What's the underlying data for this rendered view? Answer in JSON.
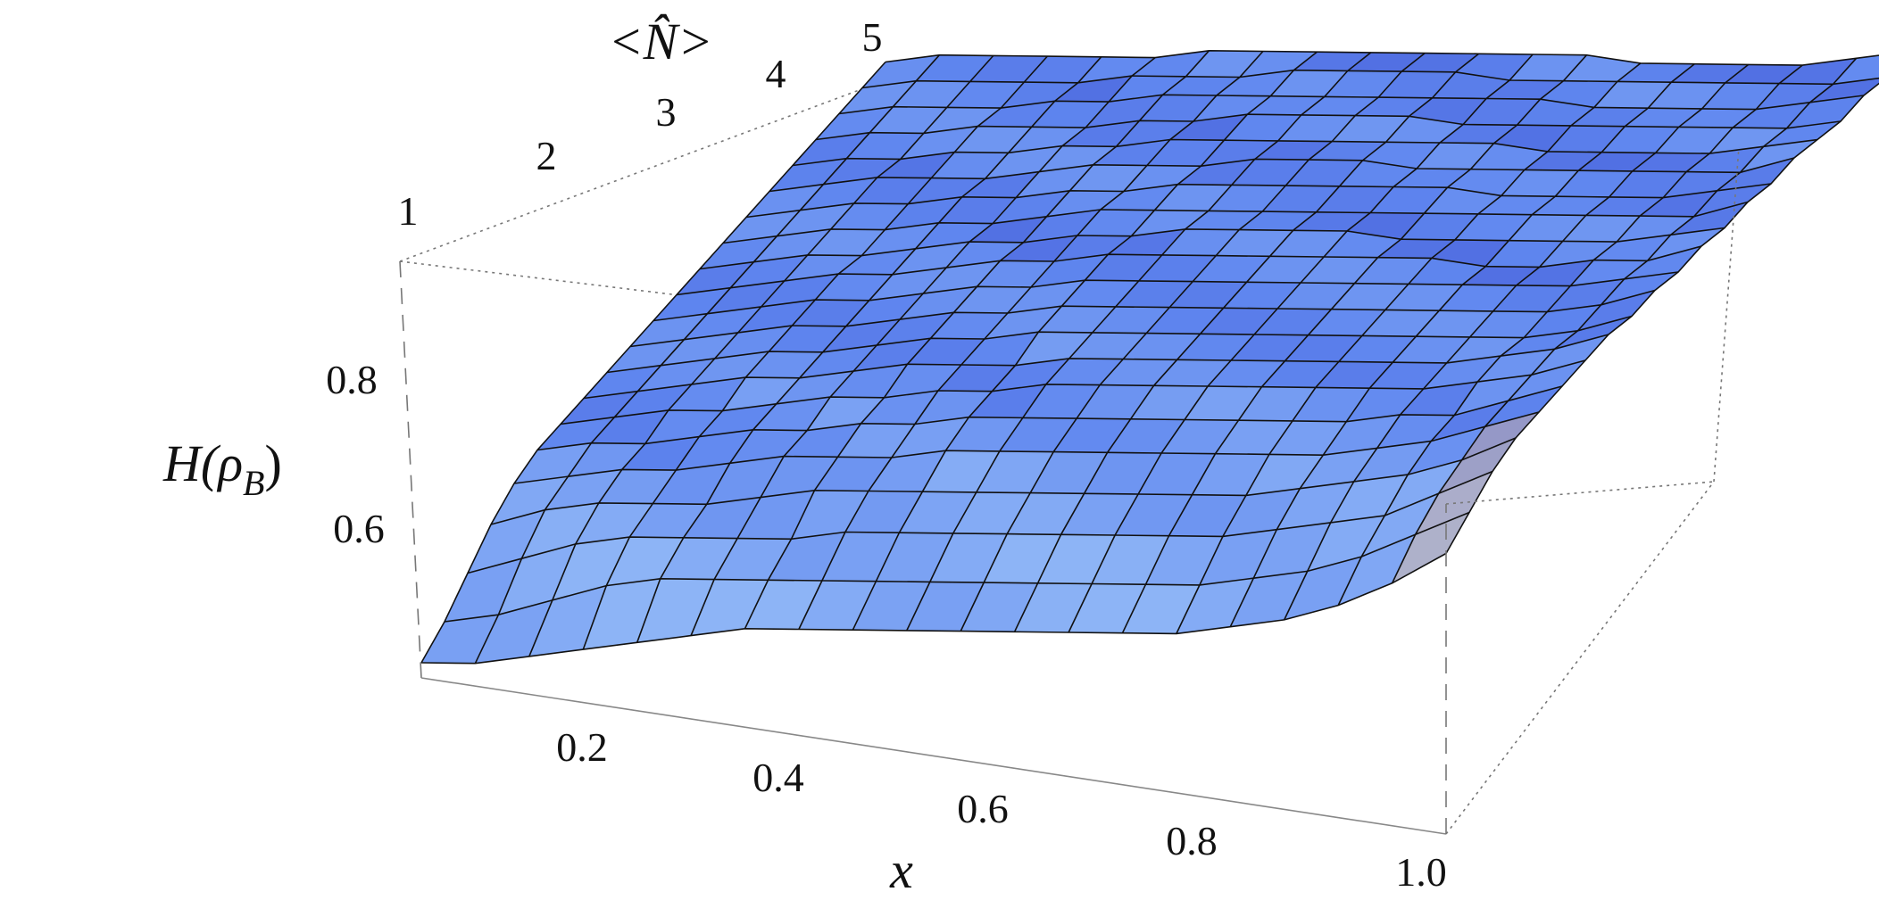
{
  "chart_data": {
    "type": "surface3d",
    "x_axis": {
      "label": "x",
      "ticks": [
        "0.2",
        "0.4",
        "0.6",
        "0.8",
        "1.0"
      ],
      "range": [
        0.05,
        1.0
      ]
    },
    "n_axis": {
      "label": "<N̂>",
      "ticks": [
        "1",
        "2",
        "3",
        "4",
        "5"
      ],
      "range": [
        1,
        5
      ]
    },
    "z_axis": {
      "label_main": "H(ρ",
      "label_sub": "B",
      "label_close": ")",
      "ticks": [
        "0.6",
        "0.8"
      ],
      "range": [
        0.45,
        1.0
      ]
    },
    "x_values": [
      0.05,
      0.1,
      0.15,
      0.2,
      0.25,
      0.3,
      0.35,
      0.4,
      0.45,
      0.5,
      0.55,
      0.6,
      0.65,
      0.7,
      0.75,
      0.8,
      0.85,
      0.9,
      0.95,
      1.0
    ],
    "n_values": [
      1,
      1.2,
      1.4,
      1.6,
      1.8,
      2,
      2.2,
      2.4,
      2.6,
      2.8,
      3,
      3.2,
      3.4,
      3.6,
      3.8,
      4,
      4.2,
      4.4,
      4.6,
      4.8,
      5
    ],
    "h_values": [
      [
        0.47,
        0.5,
        0.54,
        0.58,
        0.61,
        0.63,
        0.64,
        0.65,
        0.66,
        0.67,
        0.68,
        0.69,
        0.7,
        0.71,
        0.72,
        0.73,
        0.74,
        0.75,
        0.76,
        0.77,
        0.78
      ],
      [
        0.48,
        0.52,
        0.57,
        0.61,
        0.63,
        0.65,
        0.66,
        0.67,
        0.68,
        0.69,
        0.7,
        0.71,
        0.72,
        0.73,
        0.74,
        0.75,
        0.76,
        0.77,
        0.78,
        0.79,
        0.8
      ],
      [
        0.5,
        0.55,
        0.6,
        0.63,
        0.65,
        0.66,
        0.68,
        0.69,
        0.7,
        0.71,
        0.72,
        0.73,
        0.74,
        0.75,
        0.76,
        0.77,
        0.77,
        0.78,
        0.79,
        0.8,
        0.81
      ],
      [
        0.52,
        0.58,
        0.62,
        0.64,
        0.66,
        0.68,
        0.69,
        0.71,
        0.72,
        0.73,
        0.74,
        0.75,
        0.75,
        0.76,
        0.77,
        0.78,
        0.79,
        0.8,
        0.8,
        0.81,
        0.82
      ],
      [
        0.54,
        0.6,
        0.63,
        0.65,
        0.68,
        0.7,
        0.71,
        0.72,
        0.73,
        0.74,
        0.75,
        0.76,
        0.77,
        0.78,
        0.79,
        0.79,
        0.8,
        0.81,
        0.82,
        0.82,
        0.83
      ],
      [
        0.56,
        0.61,
        0.64,
        0.67,
        0.7,
        0.71,
        0.73,
        0.74,
        0.75,
        0.76,
        0.77,
        0.78,
        0.79,
        0.79,
        0.8,
        0.81,
        0.82,
        0.82,
        0.83,
        0.84,
        0.84
      ],
      [
        0.58,
        0.62,
        0.65,
        0.69,
        0.71,
        0.73,
        0.74,
        0.76,
        0.77,
        0.78,
        0.79,
        0.8,
        0.8,
        0.81,
        0.82,
        0.83,
        0.83,
        0.84,
        0.85,
        0.85,
        0.86
      ],
      [
        0.59,
        0.63,
        0.67,
        0.7,
        0.72,
        0.74,
        0.76,
        0.77,
        0.78,
        0.79,
        0.8,
        0.81,
        0.82,
        0.83,
        0.83,
        0.84,
        0.85,
        0.85,
        0.86,
        0.86,
        0.87
      ],
      [
        0.6,
        0.64,
        0.68,
        0.71,
        0.74,
        0.76,
        0.77,
        0.78,
        0.8,
        0.81,
        0.82,
        0.83,
        0.83,
        0.84,
        0.85,
        0.85,
        0.86,
        0.87,
        0.87,
        0.88,
        0.88
      ],
      [
        0.61,
        0.65,
        0.69,
        0.72,
        0.75,
        0.77,
        0.79,
        0.8,
        0.81,
        0.82,
        0.83,
        0.84,
        0.85,
        0.85,
        0.86,
        0.87,
        0.87,
        0.88,
        0.88,
        0.89,
        0.89
      ],
      [
        0.62,
        0.66,
        0.7,
        0.73,
        0.76,
        0.78,
        0.8,
        0.81,
        0.82,
        0.83,
        0.84,
        0.85,
        0.86,
        0.86,
        0.87,
        0.88,
        0.88,
        0.89,
        0.89,
        0.9,
        0.9
      ],
      [
        0.63,
        0.67,
        0.71,
        0.74,
        0.77,
        0.79,
        0.81,
        0.82,
        0.83,
        0.84,
        0.85,
        0.86,
        0.87,
        0.87,
        0.88,
        0.89,
        0.89,
        0.9,
        0.9,
        0.91,
        0.91
      ],
      [
        0.64,
        0.68,
        0.72,
        0.75,
        0.78,
        0.8,
        0.82,
        0.83,
        0.84,
        0.85,
        0.86,
        0.87,
        0.88,
        0.88,
        0.89,
        0.89,
        0.9,
        0.9,
        0.91,
        0.91,
        0.92
      ],
      [
        0.65,
        0.69,
        0.73,
        0.76,
        0.79,
        0.81,
        0.83,
        0.84,
        0.85,
        0.86,
        0.87,
        0.88,
        0.88,
        0.89,
        0.9,
        0.9,
        0.91,
        0.91,
        0.92,
        0.92,
        0.93
      ],
      [
        0.66,
        0.7,
        0.74,
        0.77,
        0.8,
        0.82,
        0.84,
        0.85,
        0.86,
        0.87,
        0.88,
        0.89,
        0.89,
        0.9,
        0.9,
        0.91,
        0.91,
        0.92,
        0.92,
        0.93,
        0.93
      ],
      [
        0.68,
        0.72,
        0.76,
        0.79,
        0.81,
        0.83,
        0.85,
        0.86,
        0.87,
        0.88,
        0.89,
        0.89,
        0.9,
        0.91,
        0.91,
        0.92,
        0.92,
        0.93,
        0.93,
        0.94,
        0.94
      ],
      [
        0.7,
        0.74,
        0.78,
        0.81,
        0.83,
        0.85,
        0.86,
        0.87,
        0.88,
        0.89,
        0.9,
        0.9,
        0.91,
        0.92,
        0.92,
        0.93,
        0.93,
        0.94,
        0.94,
        0.95,
        0.95
      ],
      [
        0.73,
        0.77,
        0.8,
        0.83,
        0.85,
        0.86,
        0.88,
        0.89,
        0.89,
        0.9,
        0.91,
        0.92,
        0.92,
        0.93,
        0.93,
        0.94,
        0.94,
        0.95,
        0.95,
        0.96,
        0.96
      ],
      [
        0.77,
        0.81,
        0.84,
        0.86,
        0.88,
        0.89,
        0.9,
        0.91,
        0.91,
        0.92,
        0.93,
        0.93,
        0.94,
        0.94,
        0.95,
        0.95,
        0.96,
        0.96,
        0.97,
        0.97,
        0.98
      ],
      [
        0.82,
        0.85,
        0.88,
        0.9,
        0.91,
        0.92,
        0.93,
        0.94,
        0.94,
        0.95,
        0.95,
        0.96,
        0.96,
        0.97,
        0.97,
        0.98,
        0.98,
        0.98,
        0.99,
        0.99,
        1.0
      ]
    ],
    "colors": {
      "surface_light": "#8db4f6",
      "surface_mid": "#5f86ef",
      "surface_dark": "#3d4fd0",
      "accent_orange": "#f2b27a",
      "mesh": "#111111",
      "box": "#777777"
    },
    "grid": false,
    "legend": "none"
  }
}
